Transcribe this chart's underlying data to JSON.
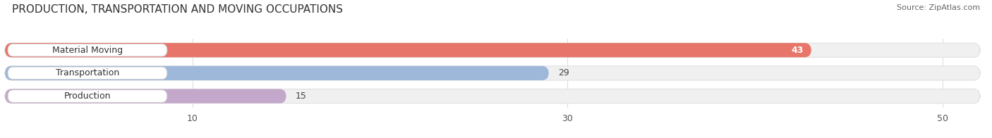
{
  "title": "PRODUCTION, TRANSPORTATION AND MOVING OCCUPATIONS",
  "source": "Source: ZipAtlas.com",
  "categories": [
    "Material Moving",
    "Transportation",
    "Production"
  ],
  "values": [
    43,
    29,
    15
  ],
  "bar_colors": [
    "#E8756A",
    "#9DB8D9",
    "#C4A8CB"
  ],
  "xlim": [
    0,
    52
  ],
  "xticks": [
    10,
    30,
    50
  ],
  "bar_height": 0.62,
  "figsize": [
    14.06,
    1.96
  ],
  "dpi": 100,
  "title_fontsize": 11,
  "tick_fontsize": 9,
  "label_fontsize": 9,
  "category_fontsize": 9,
  "bg_color": "#FFFFFF",
  "bar_bg_color": "#F0F0F0",
  "bar_bg_outline": "#E0E0E0",
  "label_box_color": "#FFFFFF"
}
